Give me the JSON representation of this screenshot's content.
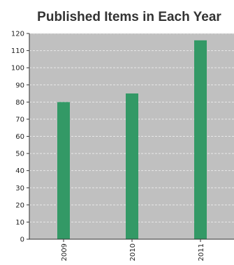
{
  "chart_data": {
    "type": "bar",
    "title": "Published Items in Each Year",
    "categories": [
      "2009",
      "2010",
      "2011"
    ],
    "values": [
      80,
      85,
      116
    ],
    "xlabel": "",
    "ylabel": "",
    "ylim": [
      0,
      120
    ],
    "yticks": [
      0,
      10,
      20,
      30,
      40,
      50,
      60,
      70,
      80,
      90,
      100,
      110,
      120
    ],
    "grid": true,
    "legend": "none",
    "colors": {
      "bar": "#339966",
      "plot_background": "#c0c0c0",
      "grid": "#e8e8e8",
      "axis": "#333333"
    }
  }
}
